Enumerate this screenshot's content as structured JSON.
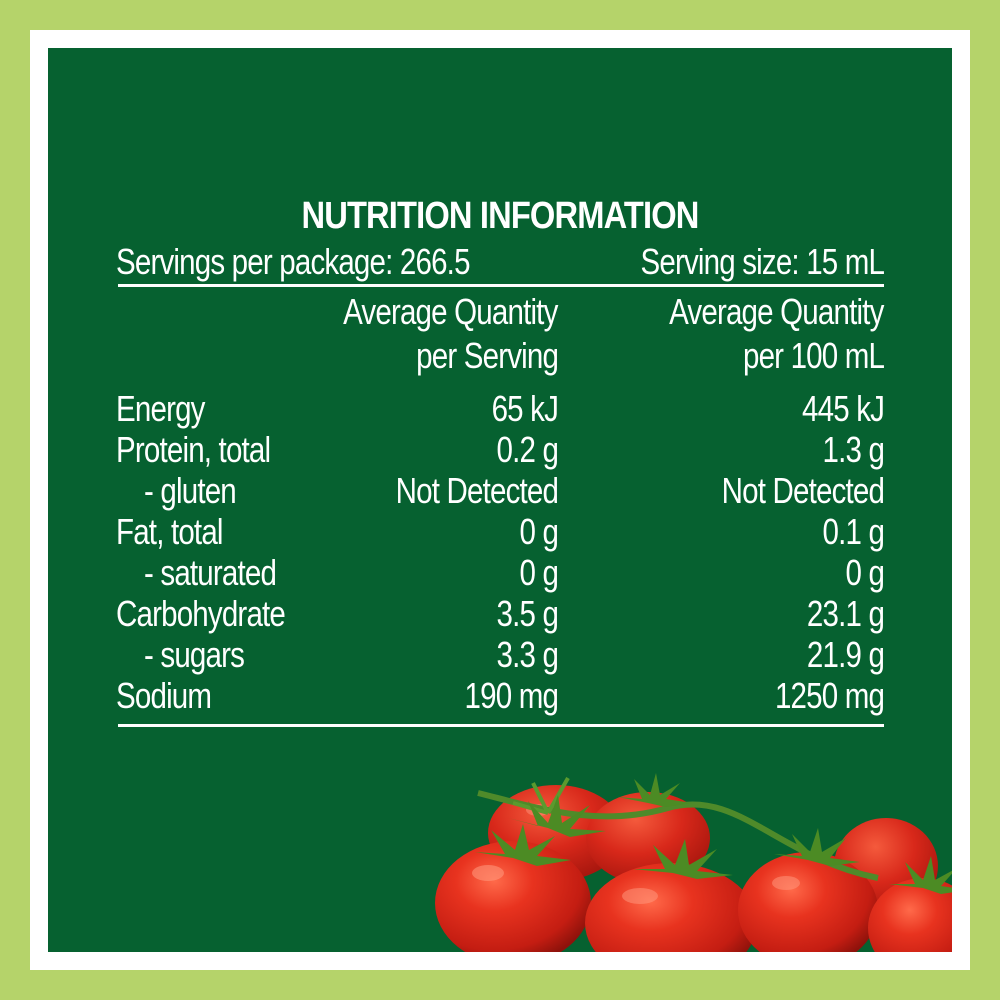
{
  "label": {
    "title": "NUTRITION INFORMATION",
    "servings_per_package": "Servings per package: 266.5",
    "serving_size": "Serving size: 15 mL",
    "col1_header_line1": "Average Quantity",
    "col1_header_line2": "per Serving",
    "col2_header_line1": "Average Quantity",
    "col2_header_line2": "per 100 mL",
    "rows": [
      {
        "name": "Energy",
        "per_serving": "65 kJ",
        "per_100ml": "445 kJ"
      },
      {
        "name": "Protein, total",
        "per_serving": "0.2 g",
        "per_100ml": "1.3 g"
      },
      {
        "name": "- gluten",
        "per_serving": "Not Detected",
        "per_100ml": "Not Detected"
      },
      {
        "name": "Fat, total",
        "per_serving": "0 g",
        "per_100ml": "0.1 g"
      },
      {
        "name": "- saturated",
        "per_serving": "0 g",
        "per_100ml": "0 g"
      },
      {
        "name": "Carbohydrate",
        "per_serving": "3.5 g",
        "per_100ml": "23.1 g"
      },
      {
        "name": "- sugars",
        "per_serving": "3.3 g",
        "per_100ml": "21.9 g"
      },
      {
        "name": "Sodium",
        "per_serving": "190 mg",
        "per_100ml": "1250 mg"
      }
    ]
  },
  "colors": {
    "outer_border": "#b5d36a",
    "inner_border": "#ffffff",
    "panel_background": "#066130",
    "text": "#ffffff",
    "tomato": "#d42a1c"
  },
  "decoration": {
    "image": "tomatoes-on-vine"
  }
}
